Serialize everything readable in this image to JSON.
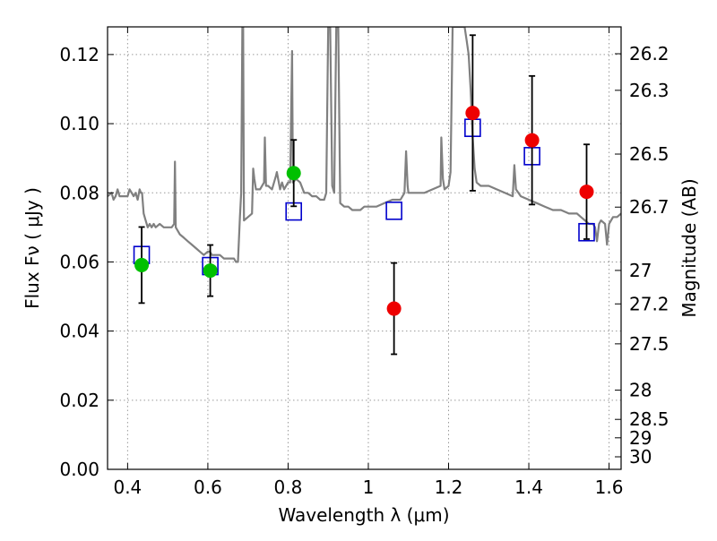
{
  "chart_data": {
    "type": "scatter",
    "title": "",
    "xlabel": "Wavelength  λ (μm)",
    "ylabel": "Flux  Fν  ( μJy )",
    "ylabel_right": "Magnitude (AB)",
    "xlim": [
      0.35,
      1.63
    ],
    "ylim": [
      0.0,
      0.128
    ],
    "grid": true,
    "legend": "none",
    "x_ticks": [
      {
        "value": 0.4,
        "label": "0.4"
      },
      {
        "value": 0.6,
        "label": "0.6"
      },
      {
        "value": 0.8,
        "label": "0.8"
      },
      {
        "value": 1.0,
        "label": "1"
      },
      {
        "value": 1.2,
        "label": "1.2"
      },
      {
        "value": 1.4,
        "label": "1.4"
      },
      {
        "value": 1.6,
        "label": "1.6"
      }
    ],
    "y_ticks": [
      {
        "value": 0.0,
        "label": "0.00"
      },
      {
        "value": 0.02,
        "label": "0.02"
      },
      {
        "value": 0.04,
        "label": "0.04"
      },
      {
        "value": 0.06,
        "label": "0.06"
      },
      {
        "value": 0.08,
        "label": "0.08"
      },
      {
        "value": 0.1,
        "label": "0.10"
      },
      {
        "value": 0.12,
        "label": "0.12"
      }
    ],
    "mag_ticks": [
      {
        "mag": 26.2,
        "label": "26.2"
      },
      {
        "mag": 26.3,
        "label": "26.3"
      },
      {
        "mag": 26.5,
        "label": "26.5"
      },
      {
        "mag": 26.7,
        "label": "26.7"
      },
      {
        "mag": 27.0,
        "label": "27"
      },
      {
        "mag": 27.2,
        "label": "27.2"
      },
      {
        "mag": 27.5,
        "label": "27.5"
      },
      {
        "mag": 28.0,
        "label": "28"
      },
      {
        "mag": 28.5,
        "label": "28.5"
      },
      {
        "mag": 29.0,
        "label": "29"
      },
      {
        "mag": 30.0,
        "label": "30"
      }
    ],
    "series": [
      {
        "marker": "square-open",
        "color": "#0000cc",
        "points": [
          {
            "x": 0.435,
            "y": 0.062
          },
          {
            "x": 0.606,
            "y": 0.0588
          },
          {
            "x": 0.814,
            "y": 0.0746
          },
          {
            "x": 1.064,
            "y": 0.0748
          },
          {
            "x": 1.26,
            "y": 0.0988
          },
          {
            "x": 1.408,
            "y": 0.0906
          },
          {
            "x": 1.544,
            "y": 0.0686
          }
        ]
      },
      {
        "marker": "circle",
        "color": "#00c000",
        "points": [
          {
            "x": 0.435,
            "y": 0.0591,
            "err": [
              0.0481,
              0.0701
            ]
          },
          {
            "x": 0.606,
            "y": 0.0575,
            "err": [
              0.0501,
              0.0649
            ]
          },
          {
            "x": 0.814,
            "y": 0.0857,
            "err": [
              0.0761,
              0.0953
            ]
          }
        ]
      },
      {
        "marker": "circle",
        "color": "#ee0000",
        "points": [
          {
            "x": 1.064,
            "y": 0.0465,
            "err": [
              0.0333,
              0.0597
            ]
          },
          {
            "x": 1.26,
            "y": 0.1031,
            "err": [
              0.0806,
              0.1256
            ]
          },
          {
            "x": 1.408,
            "y": 0.0952,
            "err": [
              0.0766,
              0.1138
            ]
          },
          {
            "x": 1.544,
            "y": 0.0803,
            "err": [
              0.0666,
              0.094
            ]
          }
        ]
      }
    ],
    "spectrum": {
      "color": "#808080",
      "points": [
        [
          0.35,
          0.079
        ],
        [
          0.36,
          0.08
        ],
        [
          0.365,
          0.078
        ],
        [
          0.37,
          0.079
        ],
        [
          0.375,
          0.081
        ],
        [
          0.38,
          0.079
        ],
        [
          0.39,
          0.079
        ],
        [
          0.4,
          0.079
        ],
        [
          0.405,
          0.081
        ],
        [
          0.41,
          0.08
        ],
        [
          0.415,
          0.079
        ],
        [
          0.42,
          0.08
        ],
        [
          0.425,
          0.078
        ],
        [
          0.43,
          0.081
        ],
        [
          0.433,
          0.08
        ],
        [
          0.436,
          0.08
        ],
        [
          0.44,
          0.074
        ],
        [
          0.445,
          0.072
        ],
        [
          0.45,
          0.07
        ],
        [
          0.455,
          0.071
        ],
        [
          0.46,
          0.07
        ],
        [
          0.465,
          0.071
        ],
        [
          0.47,
          0.07
        ],
        [
          0.48,
          0.071
        ],
        [
          0.49,
          0.07
        ],
        [
          0.5,
          0.07
        ],
        [
          0.51,
          0.07
        ],
        [
          0.516,
          0.071
        ],
        [
          0.518,
          0.089
        ],
        [
          0.52,
          0.07
        ],
        [
          0.53,
          0.068
        ],
        [
          0.54,
          0.067
        ],
        [
          0.55,
          0.066
        ],
        [
          0.56,
          0.065
        ],
        [
          0.57,
          0.064
        ],
        [
          0.58,
          0.063
        ],
        [
          0.59,
          0.062
        ],
        [
          0.6,
          0.063
        ],
        [
          0.605,
          0.063
        ],
        [
          0.61,
          0.062
        ],
        [
          0.62,
          0.062
        ],
        [
          0.63,
          0.062
        ],
        [
          0.64,
          0.061
        ],
        [
          0.65,
          0.061
        ],
        [
          0.66,
          0.061
        ],
        [
          0.665,
          0.061
        ],
        [
          0.67,
          0.06
        ],
        [
          0.675,
          0.06
        ],
        [
          0.68,
          0.073
        ],
        [
          0.683,
          0.08
        ],
        [
          0.686,
          0.128
        ],
        [
          0.688,
          0.128
        ],
        [
          0.69,
          0.072
        ],
        [
          0.7,
          0.073
        ],
        [
          0.71,
          0.074
        ],
        [
          0.713,
          0.087
        ],
        [
          0.716,
          0.084
        ],
        [
          0.72,
          0.081
        ],
        [
          0.73,
          0.081
        ],
        [
          0.74,
          0.083
        ],
        [
          0.742,
          0.096
        ],
        [
          0.745,
          0.082
        ],
        [
          0.75,
          0.082
        ],
        [
          0.76,
          0.081
        ],
        [
          0.77,
          0.085
        ],
        [
          0.772,
          0.086
        ],
        [
          0.78,
          0.081
        ],
        [
          0.785,
          0.083
        ],
        [
          0.79,
          0.081
        ],
        [
          0.8,
          0.083
        ],
        [
          0.805,
          0.083
        ],
        [
          0.81,
          0.121
        ],
        [
          0.812,
          0.083
        ],
        [
          0.82,
          0.084
        ],
        [
          0.83,
          0.083
        ],
        [
          0.84,
          0.08
        ],
        [
          0.85,
          0.08
        ],
        [
          0.86,
          0.079
        ],
        [
          0.87,
          0.079
        ],
        [
          0.88,
          0.078
        ],
        [
          0.89,
          0.078
        ],
        [
          0.895,
          0.08
        ],
        [
          0.9,
          0.128
        ],
        [
          0.905,
          0.128
        ],
        [
          0.91,
          0.082
        ],
        [
          0.915,
          0.08
        ],
        [
          0.92,
          0.128
        ],
        [
          0.925,
          0.128
        ],
        [
          0.93,
          0.077
        ],
        [
          0.94,
          0.076
        ],
        [
          0.95,
          0.076
        ],
        [
          0.96,
          0.075
        ],
        [
          0.97,
          0.075
        ],
        [
          0.98,
          0.075
        ],
        [
          0.99,
          0.076
        ],
        [
          1.0,
          0.076
        ],
        [
          1.02,
          0.076
        ],
        [
          1.04,
          0.077
        ],
        [
          1.06,
          0.078
        ],
        [
          1.08,
          0.078
        ],
        [
          1.09,
          0.08
        ],
        [
          1.094,
          0.092
        ],
        [
          1.098,
          0.082
        ],
        [
          1.1,
          0.08
        ],
        [
          1.12,
          0.08
        ],
        [
          1.14,
          0.08
        ],
        [
          1.16,
          0.081
        ],
        [
          1.18,
          0.082
        ],
        [
          1.182,
          0.096
        ],
        [
          1.186,
          0.084
        ],
        [
          1.19,
          0.081
        ],
        [
          1.2,
          0.082
        ],
        [
          1.205,
          0.086
        ],
        [
          1.21,
          0.128
        ],
        [
          1.22,
          0.128
        ],
        [
          1.24,
          0.128
        ],
        [
          1.245,
          0.124
        ],
        [
          1.25,
          0.12
        ],
        [
          1.255,
          0.11
        ],
        [
          1.26,
          0.096
        ],
        [
          1.265,
          0.087
        ],
        [
          1.27,
          0.083
        ],
        [
          1.28,
          0.082
        ],
        [
          1.3,
          0.082
        ],
        [
          1.32,
          0.081
        ],
        [
          1.34,
          0.08
        ],
        [
          1.36,
          0.079
        ],
        [
          1.364,
          0.088
        ],
        [
          1.368,
          0.081
        ],
        [
          1.38,
          0.079
        ],
        [
          1.4,
          0.078
        ],
        [
          1.42,
          0.077
        ],
        [
          1.44,
          0.076
        ],
        [
          1.46,
          0.075
        ],
        [
          1.48,
          0.075
        ],
        [
          1.5,
          0.074
        ],
        [
          1.52,
          0.074
        ],
        [
          1.53,
          0.073
        ],
        [
          1.54,
          0.072
        ],
        [
          1.55,
          0.071
        ],
        [
          1.56,
          0.071
        ],
        [
          1.565,
          0.07
        ],
        [
          1.57,
          0.066
        ],
        [
          1.575,
          0.071
        ],
        [
          1.58,
          0.072
        ],
        [
          1.59,
          0.071
        ],
        [
          1.595,
          0.065
        ],
        [
          1.6,
          0.071
        ],
        [
          1.61,
          0.073
        ],
        [
          1.62,
          0.073
        ],
        [
          1.63,
          0.074
        ]
      ]
    }
  }
}
